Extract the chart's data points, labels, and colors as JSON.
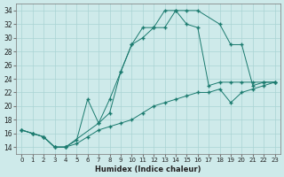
{
  "xlabel": "Humidex (Indice chaleur)",
  "ylabel": "",
  "xlim": [
    -0.5,
    23.5
  ],
  "ylim": [
    13.0,
    35.0
  ],
  "yticks": [
    14,
    16,
    18,
    20,
    22,
    24,
    26,
    28,
    30,
    32,
    34
  ],
  "xticks": [
    0,
    1,
    2,
    3,
    4,
    5,
    6,
    7,
    8,
    9,
    10,
    11,
    12,
    13,
    14,
    15,
    16,
    17,
    18,
    19,
    20,
    21,
    22,
    23
  ],
  "color": "#1a7a6e",
  "bg_color": "#ceeaea",
  "line1_x": [
    0,
    1,
    2,
    3,
    4,
    7,
    8,
    9,
    10,
    11,
    12,
    13,
    14,
    15,
    16,
    17,
    18,
    19,
    20,
    21,
    22,
    23
  ],
  "line1_y": [
    16.5,
    16.0,
    15.5,
    14.0,
    14.0,
    17.5,
    19.0,
    25.0,
    29.0,
    31.5,
    31.5,
    34.0,
    34.0,
    32.0,
    31.5,
    23.0,
    23.5,
    23.5,
    23.5,
    23.5,
    23.5,
    23.5
  ],
  "line2_x": [
    0,
    1,
    2,
    3,
    4,
    5,
    6,
    7,
    8,
    9,
    10,
    11,
    12,
    13,
    14,
    15,
    16,
    18,
    19,
    20,
    21,
    22,
    23
  ],
  "line2_y": [
    16.5,
    16.0,
    15.5,
    14.0,
    14.0,
    15.0,
    21.0,
    17.5,
    21.0,
    25.0,
    29.0,
    30.0,
    31.5,
    31.5,
    34.0,
    34.0,
    34.0,
    32.0,
    29.0,
    29.0,
    23.0,
    23.5,
    23.5
  ],
  "line3_x": [
    0,
    1,
    2,
    3,
    4,
    5,
    6,
    7,
    8,
    9,
    10,
    11,
    12,
    13,
    14,
    15,
    16,
    17,
    18,
    19,
    20,
    21,
    22,
    23
  ],
  "line3_y": [
    16.5,
    16.0,
    15.5,
    14.0,
    14.0,
    14.5,
    15.5,
    16.5,
    17.0,
    17.5,
    18.0,
    19.0,
    20.0,
    20.5,
    21.0,
    21.5,
    22.0,
    22.0,
    22.5,
    20.5,
    22.0,
    22.5,
    23.0,
    23.5
  ]
}
